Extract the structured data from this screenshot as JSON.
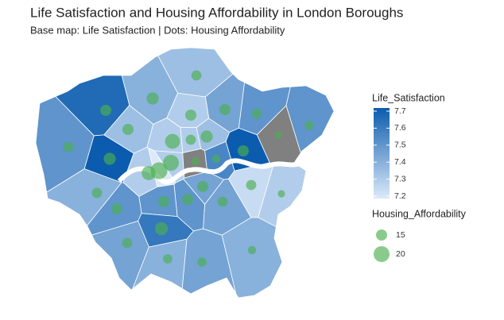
{
  "chart_data": {
    "type": "map",
    "title": "Life Satisfaction and Housing Affordability in London Boroughs",
    "subtitle": "Base map: Life Satisfaction | Dots: Housing Affordability",
    "fill_legend": {
      "title": "Life_Satisfaction",
      "lim": [
        7.2,
        7.7
      ],
      "ticks": [
        7.2,
        7.3,
        7.4,
        7.5,
        7.6,
        7.7
      ]
    },
    "size_legend": {
      "title": "Housing_Affordability",
      "values": [
        15,
        20
      ]
    },
    "colors": {
      "low": "#dce9fa",
      "high": "#0b5cae",
      "na": "#808080",
      "dots": "#4caf50"
    },
    "regions": {
      "life_satisfaction": [
        7.35,
        7.4,
        7.65,
        7.45,
        7.5,
        7.5,
        7.35,
        7.3,
        7.5,
        7.3,
        7.3,
        7.35,
        7.7,
        7.7,
        7.3,
        7.2,
        7.3,
        null,
        7.55,
        null,
        7.4,
        7.45,
        7.5,
        7.5,
        7.25,
        7.3,
        7.5,
        7.45,
        7.6,
        7.45,
        7.4,
        7.45,
        7.4
      ],
      "housing_affordability": [
        14,
        16,
        15,
        15,
        14,
        13,
        15,
        15,
        14,
        19,
        14,
        16,
        16,
        15,
        20,
        21,
        18,
        12,
        12,
        11,
        14,
        15,
        15,
        15,
        14,
        11,
        15,
        14,
        17,
        14,
        13,
        13,
        12
      ]
    }
  }
}
